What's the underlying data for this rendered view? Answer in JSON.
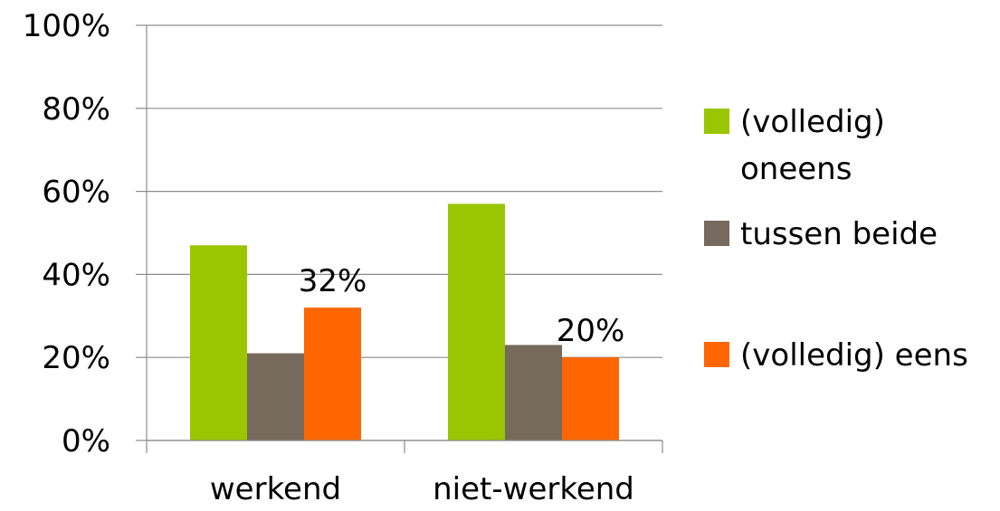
{
  "chart_data": {
    "type": "bar",
    "categories": [
      "werkend",
      "niet-werkend"
    ],
    "series": [
      {
        "name": "(volledig) oneens",
        "name_lines": [
          "(volledig)",
          "oneens"
        ],
        "values": [
          47,
          57
        ],
        "color": "#99c600"
      },
      {
        "name": "tussen beide",
        "name_lines": [
          "tussen beide"
        ],
        "values": [
          21,
          23
        ],
        "color": "#756a5c"
      },
      {
        "name": "(volledig) eens",
        "name_lines": [
          "(volledig) eens"
        ],
        "values": [
          32,
          20
        ],
        "color": "#ff6600"
      }
    ],
    "data_labels": [
      {
        "series": 2,
        "category": 0,
        "text": "32%"
      },
      {
        "series": 2,
        "category": 1,
        "text": "20%"
      }
    ],
    "yticks": [
      "0%",
      "20%",
      "40%",
      "60%",
      "80%",
      "100%"
    ],
    "ylim": [
      0,
      100
    ],
    "y_unit": "%",
    "grid": true,
    "legend_position": "right",
    "title": "",
    "xlabel": "",
    "ylabel": ""
  }
}
